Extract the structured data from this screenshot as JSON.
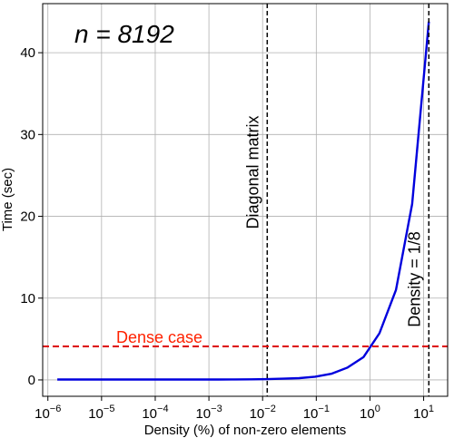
{
  "chart_data": {
    "type": "line",
    "title": "n = 8192",
    "xlabel": "Density (%) of non-zero elements",
    "ylabel": "Time (sec)",
    "xscale": "log",
    "xlim": [
      8e-07,
      28
    ],
    "ylim": [
      -2,
      46
    ],
    "grid": true,
    "x_ticks": [
      {
        "value": 1e-06,
        "base": "10",
        "exp": "−6"
      },
      {
        "value": 1e-05,
        "base": "10",
        "exp": "−5"
      },
      {
        "value": 0.0001,
        "base": "10",
        "exp": "−4"
      },
      {
        "value": 0.001,
        "base": "10",
        "exp": "−3"
      },
      {
        "value": 0.01,
        "base": "10",
        "exp": "−2"
      },
      {
        "value": 0.1,
        "base": "10",
        "exp": "−1"
      },
      {
        "value": 1,
        "base": "10",
        "exp": "0"
      },
      {
        "value": 10,
        "base": "10",
        "exp": "1"
      }
    ],
    "y_ticks": [
      0,
      10,
      20,
      30,
      40
    ],
    "series": [
      {
        "color": "#0000dd",
        "x": [
          1.5e-06,
          3e-06,
          6e-06,
          1.2e-05,
          2.4e-05,
          4.8e-05,
          9.5e-05,
          0.00019,
          0.00038,
          0.00076,
          0.0015,
          0.003,
          0.006,
          0.012,
          0.024,
          0.048,
          0.095,
          0.19,
          0.38,
          0.76,
          1.5,
          3.05,
          6.1,
          12.5
        ],
        "y": [
          0.05,
          0.05,
          0.05,
          0.05,
          0.05,
          0.05,
          0.05,
          0.05,
          0.05,
          0.05,
          0.05,
          0.06,
          0.07,
          0.1,
          0.15,
          0.22,
          0.4,
          0.75,
          1.5,
          2.8,
          5.7,
          11.0,
          21.5,
          43.8
        ]
      }
    ],
    "reference_lines": [
      {
        "orientation": "vertical",
        "x": 0.0122,
        "label": "Diagonal matrix",
        "color": "#000000",
        "style": "dashed"
      },
      {
        "orientation": "vertical",
        "x": 12.5,
        "label": "Density = 1/8",
        "color": "#000000",
        "style": "dashed"
      },
      {
        "orientation": "horizontal",
        "y": 4.1,
        "label": "Dense case",
        "color": "#dd0000",
        "style": "dashed",
        "label_color": "#ff2200"
      }
    ]
  }
}
